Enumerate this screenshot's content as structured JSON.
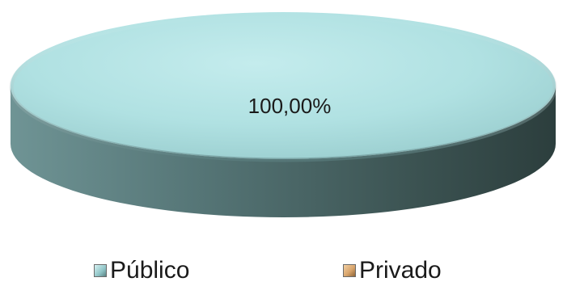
{
  "chart_data": {
    "type": "pie",
    "style": "3d-ellipse",
    "categories": [
      "Público",
      "Privado"
    ],
    "values": [
      100,
      0
    ],
    "data_labels": [
      "100,00%"
    ],
    "legend_position": "bottom",
    "colors": {
      "publico_top_light": "#bfeaeb",
      "publico_top_mid": "#a6d9da",
      "publico_top_dark": "#8fc4c6",
      "publico_side_light": "#6f9495",
      "publico_side_dark": "#2f4443",
      "privado": "#d9a56c"
    }
  },
  "legend": {
    "items": [
      {
        "label": "Público",
        "swatch_icon": "square-cyan-icon"
      },
      {
        "label": "Privado",
        "swatch_icon": "square-orange-icon"
      }
    ]
  }
}
